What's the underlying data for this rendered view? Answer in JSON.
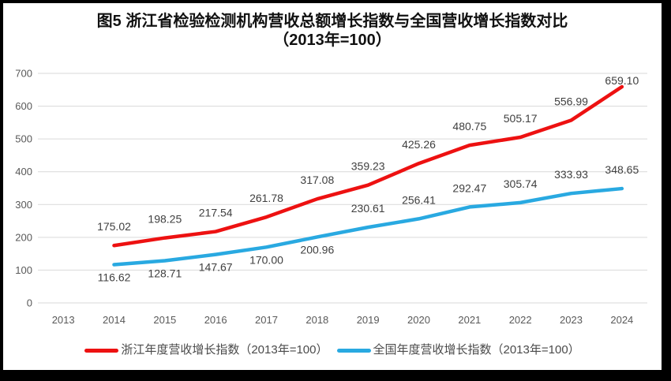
{
  "figure": {
    "title_line1": "图5  浙江省检验检测机构营收总额增长指数与全国营收增长指数对比",
    "title_line2": "（2013年=100）"
  },
  "chart_data": {
    "type": "line",
    "x_categories": [
      "2013",
      "2014",
      "2015",
      "2016",
      "2017",
      "2018",
      "2019",
      "2020",
      "2021",
      "2022",
      "2023",
      "2024"
    ],
    "yticks": [
      0,
      100,
      200,
      300,
      400,
      500,
      600,
      700
    ],
    "ylim": [
      0,
      700
    ],
    "grid": "horizontal",
    "legend_position": "bottom",
    "series": [
      {
        "key": "zhejiang",
        "name": "浙江年度营收增长指数（2013年=100）",
        "color": "#ED1111",
        "start_index": 1,
        "values": [
          175.02,
          198.25,
          217.54,
          261.78,
          317.08,
          359.23,
          425.26,
          480.75,
          505.17,
          556.99,
          659.1
        ],
        "label_positions": [
          "above",
          "above",
          "above",
          "above",
          "above",
          "above",
          "above",
          "above",
          "above",
          "above",
          "above"
        ]
      },
      {
        "key": "national",
        "name": "全国年度营收增长指数（2013年=100）",
        "color": "#29A9E1",
        "start_index": 1,
        "values": [
          116.62,
          128.71,
          147.67,
          170.0,
          200.96,
          230.61,
          256.41,
          292.47,
          305.74,
          333.93,
          348.65
        ],
        "label_positions": [
          "below",
          "below",
          "below",
          "below",
          "below",
          "above",
          "above",
          "above",
          "above",
          "above",
          "above"
        ]
      }
    ],
    "colors": {
      "gridline": "#D9D9D9",
      "axis_text": "#595959",
      "data_label_text": "#3F3F3F",
      "title_text": "#111111",
      "frame_border": "#000000",
      "background": "#FFFFFF"
    }
  }
}
